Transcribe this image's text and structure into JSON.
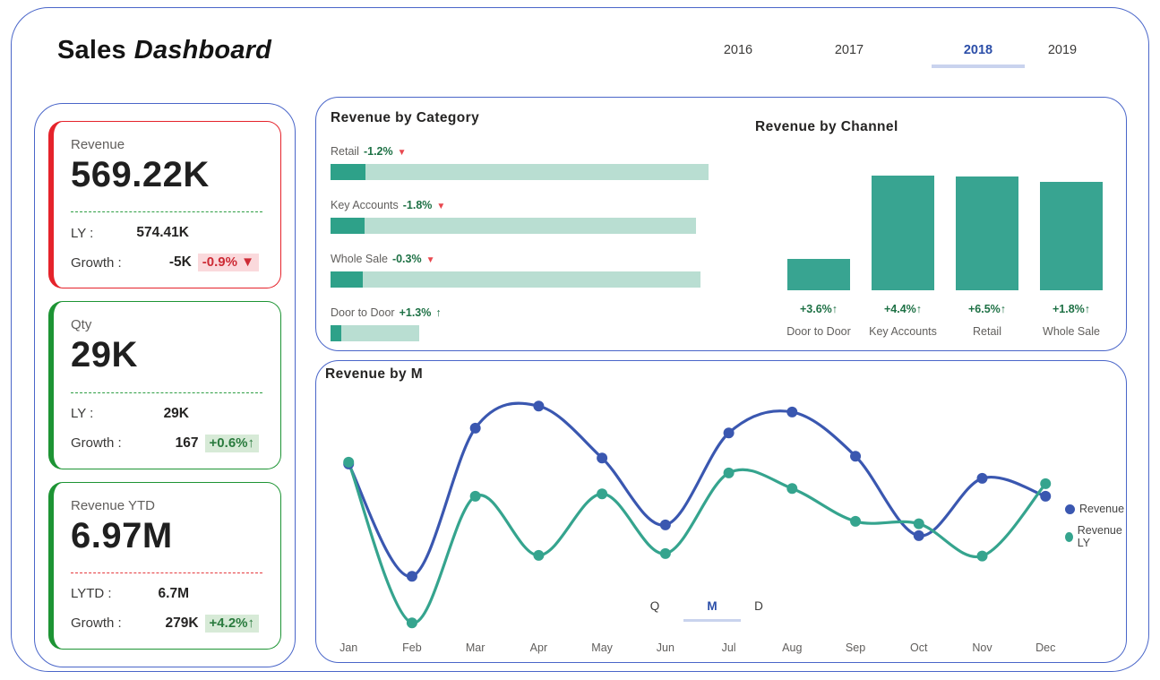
{
  "header": {
    "title_bold": "Sales",
    "title_italic": "Dashboard",
    "years": [
      "2016",
      "2017",
      "2018",
      "2019"
    ],
    "selected_year": "2018"
  },
  "kpi_cards": [
    {
      "label": "Revenue",
      "value": "569.22K",
      "accent_color": "#e5232b",
      "divider_color": "#2e9e44",
      "rows": [
        {
          "label": "LY :",
          "value": "574.41K",
          "type": "ly"
        },
        {
          "label": "Growth :",
          "value": "-5K",
          "badge": "-0.9% ▼",
          "badge_type": "negative",
          "type": "growth"
        }
      ]
    },
    {
      "label": "Qty",
      "value": "29K",
      "accent_color": "#1d9434",
      "divider_color": "#2e9e44",
      "rows": [
        {
          "label": "LY :",
          "value": "29K",
          "type": "ly"
        },
        {
          "label": "Growth :",
          "value": "167",
          "badge": "+0.6%↑",
          "badge_type": "positive",
          "type": "growth"
        }
      ]
    },
    {
      "label": "Revenue YTD",
      "value": "6.97M",
      "accent_color": "#1d9434",
      "divider_color": "#e5393e",
      "rows": [
        {
          "label": "LYTD :",
          "value": "6.7M",
          "type": "ly"
        },
        {
          "label": "Growth :",
          "value": "279K",
          "badge": "+4.2%↑",
          "badge_type": "positive",
          "type": "growth"
        }
      ]
    }
  ],
  "chart_data": [
    {
      "id": "revenue-by-category",
      "type": "bar",
      "orientation": "horizontal",
      "title": "Revenue by Category",
      "categories": [
        "Retail",
        "Key Accounts",
        "Whole Sale",
        "Door to Door"
      ],
      "values": [
        179,
        173,
        175,
        42
      ],
      "highlight_values": [
        16.5,
        16,
        15.2,
        5
      ],
      "unit": "K (estimated, axis unlabeled)",
      "growth": [
        "-1.2%",
        "-1.8%",
        "-0.3%",
        "+1.3%"
      ],
      "growth_dir": [
        "down",
        "down",
        "down",
        "up"
      ],
      "xlim": [
        0,
        179
      ],
      "grid": false
    },
    {
      "id": "revenue-by-channel",
      "type": "bar",
      "orientation": "vertical",
      "title": "Revenue by Channel",
      "categories": [
        "Door to Door",
        "Key Accounts",
        "Retail",
        "Whole Sale"
      ],
      "values": [
        49,
        177,
        176,
        168
      ],
      "growth": [
        "+3.6%↑",
        "+4.4%↑",
        "+6.5%↑",
        "+1.8%↑"
      ],
      "unit": "K (estimated, axis unlabeled)",
      "ylim": [
        0,
        190
      ],
      "grid": false
    },
    {
      "id": "revenue-by-month",
      "type": "line",
      "title": "Revenue by M",
      "x": [
        "Jan",
        "Feb",
        "Mar",
        "Apr",
        "May",
        "Jun",
        "Jul",
        "Aug",
        "Sep",
        "Oct",
        "Nov",
        "Dec"
      ],
      "series": [
        {
          "name": "Revenue",
          "color": "#3a57b0",
          "values": [
            48.8,
            30.0,
            54.8,
            58.5,
            49.8,
            38.6,
            54.0,
            57.5,
            50.1,
            36.8,
            46.4,
            43.4
          ]
        },
        {
          "name": "Revenue LY",
          "color": "#35a48e",
          "values": [
            49.1,
            22.2,
            43.4,
            33.5,
            43.8,
            33.8,
            47.3,
            44.7,
            39.2,
            38.8,
            33.4,
            45.5
          ]
        }
      ],
      "unit": "K (estimated, axis unlabeled)",
      "ylim": [
        20,
        61
      ],
      "legend_position": "right",
      "grid": false
    }
  ],
  "toggle": {
    "options": [
      "Q",
      "M",
      "D"
    ],
    "selected": "M"
  },
  "colors": {
    "panel_border": "#4a66c9",
    "teal": "#38a491",
    "teal_light": "#b9ded2",
    "blue": "#3a57b0",
    "green_text": "#1e7145",
    "red_arrow": "#e8484f",
    "badge_negative_bg": "#fad9dc",
    "badge_negative_text": "#cd2b35",
    "badge_positive_bg": "#d7ead7",
    "badge_positive_text": "#2a7b3e",
    "year_active": "#2b4ea8",
    "underline": "#c9d3ee"
  }
}
